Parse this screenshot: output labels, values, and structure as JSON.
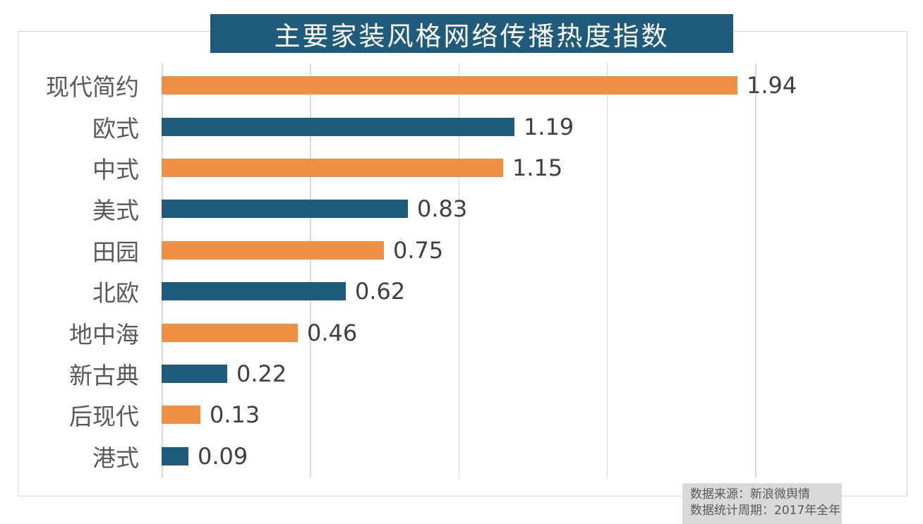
{
  "title": "主要家装风格网络传播热度指数",
  "source": {
    "line1": "数据来源：新浪微舆情",
    "line2": "数据统计周期：2017年全年"
  },
  "colors": {
    "banner_bg": "#1F5B7C",
    "bar_orange": "#EE8F44",
    "bar_blue": "#1F5B7C",
    "gridline": "#D9D9D9",
    "category_label": "#595959",
    "value_label": "#3F3F3F",
    "source_bg": "#D9D9D9",
    "source_text": "#595959"
  },
  "chart_data": {
    "type": "bar",
    "orientation": "horizontal",
    "title": "主要家装风格网络传播热度指数",
    "categories": [
      "现代简约",
      "欧式",
      "中式",
      "美式",
      "田园",
      "北欧",
      "地中海",
      "新古典",
      "后现代",
      "港式"
    ],
    "values": [
      1.94,
      1.19,
      1.15,
      0.83,
      0.75,
      0.62,
      0.46,
      0.22,
      0.13,
      0.09
    ],
    "value_labels": [
      "1.94",
      "1.19",
      "1.15",
      "0.83",
      "0.75",
      "0.62",
      "0.46",
      "0.22",
      "0.13",
      "0.09"
    ],
    "xlabel": "",
    "ylabel": "",
    "xlim": [
      0,
      2.0
    ],
    "gridlines": [
      0,
      0.5,
      1.0,
      1.5,
      2.0
    ],
    "grid": "vertical-only",
    "legend": "none",
    "bar_color_pattern": "alternating orange/blue starting with orange",
    "data_labels": "shown at end of each bar"
  }
}
